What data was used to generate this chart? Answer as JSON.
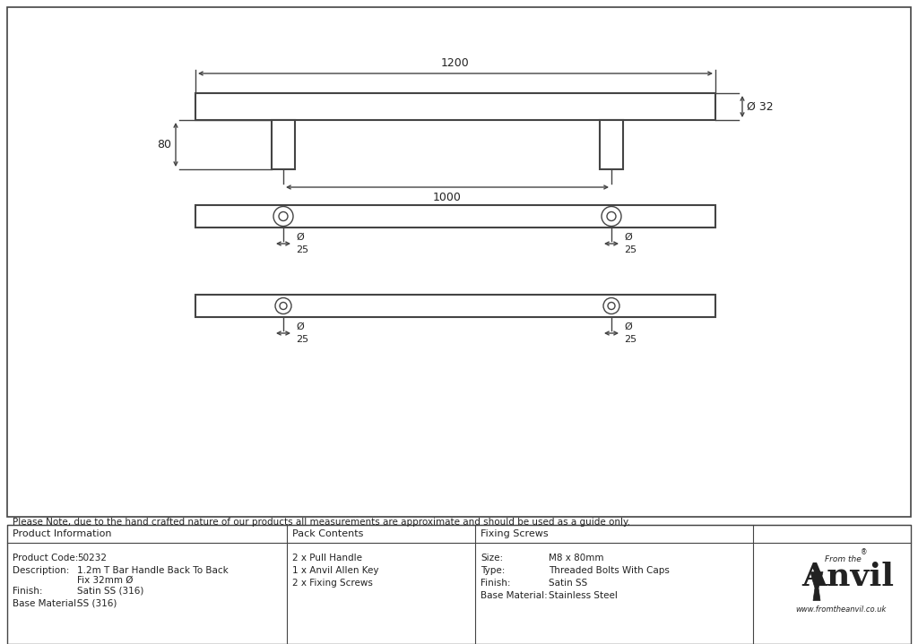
{
  "bg_color": "#ffffff",
  "line_color": "#444444",
  "text_color": "#222222",
  "border_color": "#444444",
  "note_text": "Please Note, due to the hand crafted nature of our products all measurements are approximate and should be used as a guide only.",
  "product_info": {
    "col1_header": "Product Information",
    "product_code_label": "Product Code:",
    "product_code_value": "50232",
    "description_label": "Description:",
    "description_value1": "1.2m T Bar Handle Back To Back",
    "description_value2": "Fix 32mm Ø",
    "finish_label": "Finish:",
    "finish_value": "Satin SS (316)",
    "base_material_label": "Base Material:",
    "base_material_value": "SS (316)"
  },
  "pack_contents": {
    "header": "Pack Contents",
    "items": [
      "2 x Pull Handle",
      "1 x Anvil Allen Key",
      "2 x Fixing Screws"
    ]
  },
  "fixing_screws": {
    "header": "Fixing Screws",
    "size_label": "Size:",
    "size_value": "M8 x 80mm",
    "type_label": "Type:",
    "type_value": "Threaded Bolts With Caps",
    "finish_label": "Finish:",
    "finish_value": "Satin SS",
    "base_material_label": "Base Material:",
    "base_material_value": "Stainless Steel"
  },
  "dim_1200": "1200",
  "dim_1000": "1000",
  "dim_80": "80",
  "dim_32": "Ø 32",
  "website": "www.fromtheanvil.co.uk",
  "brand_from": "From the",
  "brand_name": "Anvil"
}
